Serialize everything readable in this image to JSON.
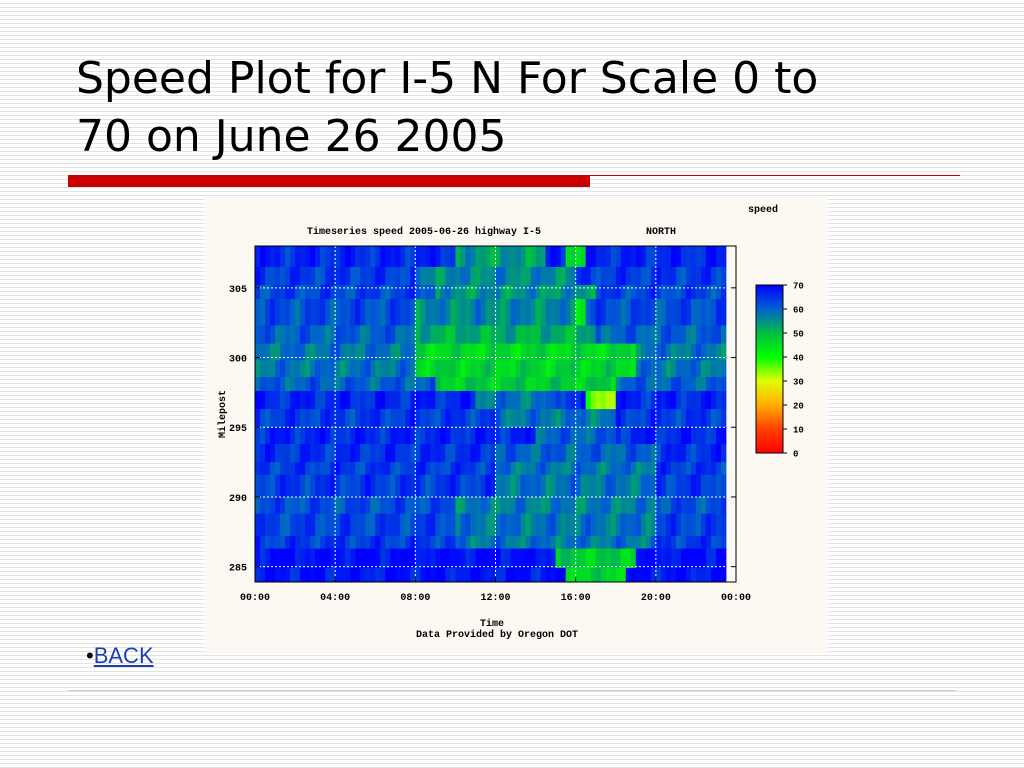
{
  "slide": {
    "title_lines": [
      "Speed Plot for I-5 N For Scale 0 to",
      "70 on June 26 2005"
    ],
    "bullet": "•",
    "back_link": "BACK"
  },
  "colors": {
    "title_rule": "#cc0000",
    "link": "#1f3fb3"
  },
  "chart_data": {
    "type": "heatmap",
    "title": "Timeseries speed 2005-06-26 highway I-5",
    "direction_label": "NORTH",
    "colorbar_title": "speed",
    "xlabel": "Time",
    "ylabel": "Milepost",
    "credit": "Data Provided by Oregon DOT",
    "x_ticks": [
      "00:00",
      "04:00",
      "08:00",
      "12:00",
      "16:00",
      "20:00",
      "00:00"
    ],
    "x_range_hours": [
      0,
      24
    ],
    "data_end_hour": 23.3,
    "y_ticks": [
      305,
      300,
      295,
      290,
      285
    ],
    "y_range": [
      283.9,
      308
    ],
    "colorbar_ticks": [
      70,
      60,
      50,
      40,
      30,
      20,
      10,
      0
    ],
    "colorbar_range": [
      0,
      70
    ],
    "grid": true,
    "rows": [
      {
        "milepost_from": 306.5,
        "milepost_to": 308.0,
        "base_speed": 66,
        "dips": [
          [
            10,
            14.5,
            54
          ],
          [
            15.5,
            16.5,
            48
          ]
        ]
      },
      {
        "milepost_from": 305.2,
        "milepost_to": 306.5,
        "base_speed": 64,
        "dips": [
          [
            8,
            16,
            56
          ]
        ]
      },
      {
        "milepost_from": 304.2,
        "milepost_to": 305.2,
        "base_speed": 63,
        "dips": [
          [
            9,
            17,
            55
          ]
        ]
      },
      {
        "milepost_from": 302.3,
        "milepost_to": 304.2,
        "base_speed": 62,
        "dips": [
          [
            8,
            16,
            56
          ],
          [
            15.8,
            16.3,
            45
          ]
        ]
      },
      {
        "milepost_from": 301.0,
        "milepost_to": 302.3,
        "base_speed": 60,
        "dips": [
          [
            8,
            17,
            52
          ]
        ]
      },
      {
        "milepost_from": 299.8,
        "milepost_to": 301.0,
        "base_speed": 58,
        "dips": [
          [
            8,
            19,
            46
          ]
        ]
      },
      {
        "milepost_from": 298.6,
        "milepost_to": 299.8,
        "base_speed": 58,
        "dips": [
          [
            8,
            19,
            47
          ]
        ]
      },
      {
        "milepost_from": 297.6,
        "milepost_to": 298.6,
        "base_speed": 60,
        "dips": [
          [
            9,
            18,
            48
          ]
        ]
      },
      {
        "milepost_from": 296.3,
        "milepost_to": 297.6,
        "base_speed": 66,
        "dips": [
          [
            16.5,
            17.8,
            35
          ],
          [
            11,
            15,
            58
          ]
        ]
      },
      {
        "milepost_from": 295.0,
        "milepost_to": 296.3,
        "base_speed": 64,
        "dips": [
          [
            12,
            18,
            58
          ]
        ]
      },
      {
        "milepost_from": 293.8,
        "milepost_to": 295.0,
        "base_speed": 66,
        "dips": [
          [
            14,
            18,
            60
          ]
        ]
      },
      {
        "milepost_from": 292.5,
        "milepost_to": 293.8,
        "base_speed": 65,
        "dips": [
          [
            12,
            20,
            60
          ]
        ]
      },
      {
        "milepost_from": 291.6,
        "milepost_to": 292.5,
        "base_speed": 64,
        "dips": [
          [
            12,
            20,
            58
          ]
        ]
      },
      {
        "milepost_from": 290.0,
        "milepost_to": 291.6,
        "base_speed": 64,
        "dips": [
          [
            12,
            20,
            58
          ]
        ]
      },
      {
        "milepost_from": 288.8,
        "milepost_to": 290.0,
        "base_speed": 62,
        "dips": [
          [
            10,
            20,
            57
          ]
        ]
      },
      {
        "milepost_from": 287.2,
        "milepost_to": 288.8,
        "base_speed": 63,
        "dips": [
          [
            10,
            20,
            58
          ]
        ]
      },
      {
        "milepost_from": 286.3,
        "milepost_to": 287.2,
        "base_speed": 64,
        "dips": [
          [
            10,
            20,
            58
          ]
        ]
      },
      {
        "milepost_from": 284.9,
        "milepost_to": 286.3,
        "base_speed": 69,
        "dips": [
          [
            15,
            19,
            48
          ]
        ]
      },
      {
        "milepost_from": 283.9,
        "milepost_to": 284.9,
        "base_speed": 68,
        "dips": [
          [
            15.5,
            18.5,
            47
          ]
        ]
      }
    ]
  }
}
